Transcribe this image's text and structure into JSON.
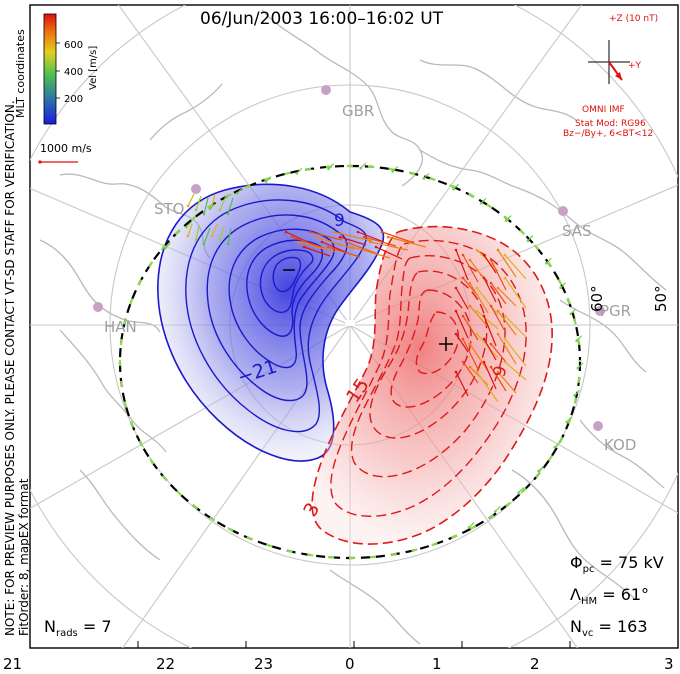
{
  "title": "06/Jun/2003 16:00–16:02 UT",
  "color_bar": {
    "label": "Vel [m/s]",
    "ticks": [
      "600",
      "400",
      "200"
    ]
  },
  "coord_label": "MLT coordinates",
  "vector_scale": "1000 m/s",
  "imf": {
    "header": "+Z (10 nT)",
    "y_label": "+Y",
    "source": "OMNI IMF",
    "model_line1": "Stat Mod: RG96",
    "model_line2": "Bz−/By+, 6<BT<12"
  },
  "stations": [
    "GBR",
    "STO",
    "SAS",
    "PGR",
    "HAN",
    "KOD"
  ],
  "lat_labels": [
    "60°",
    "50°"
  ],
  "contour_labels": [
    "9",
    "−21",
    "15",
    "9",
    "3"
  ],
  "stats": {
    "phi_pc": "Φ",
    "phi_sub": "pc",
    "phi_val": " = 75 kV",
    "lambda": "Λ",
    "lambda_sub": "HM",
    "lambda_val": " = 61°",
    "n": "N",
    "nvc_sub": "vc",
    "nvc_val": " = 163",
    "nrads_sub": "rads",
    "nrads_val": " = 7"
  },
  "notes": {
    "line1": "NOTE: FOR PREVIEW PURPOSES ONLY. PLEASE CONTACT VT-SD STAFF FOR VERIFICATION.",
    "line2": "FitOrder: 8, mapEX format"
  },
  "chart_data": {
    "type": "map",
    "x_axis_ticks": [
      "21",
      "22",
      "23",
      "0",
      "1",
      "2",
      "3"
    ],
    "potential_min_label": "−21",
    "potential_max_label": "15",
    "cross_polar_cap_potential_kV": 75,
    "heppner_maynard_boundary_deg": 61,
    "num_vectors": 163,
    "num_radars": 7,
    "colors": {
      "negative": "#1a1acc",
      "positive": "#dd1a1a"
    }
  }
}
